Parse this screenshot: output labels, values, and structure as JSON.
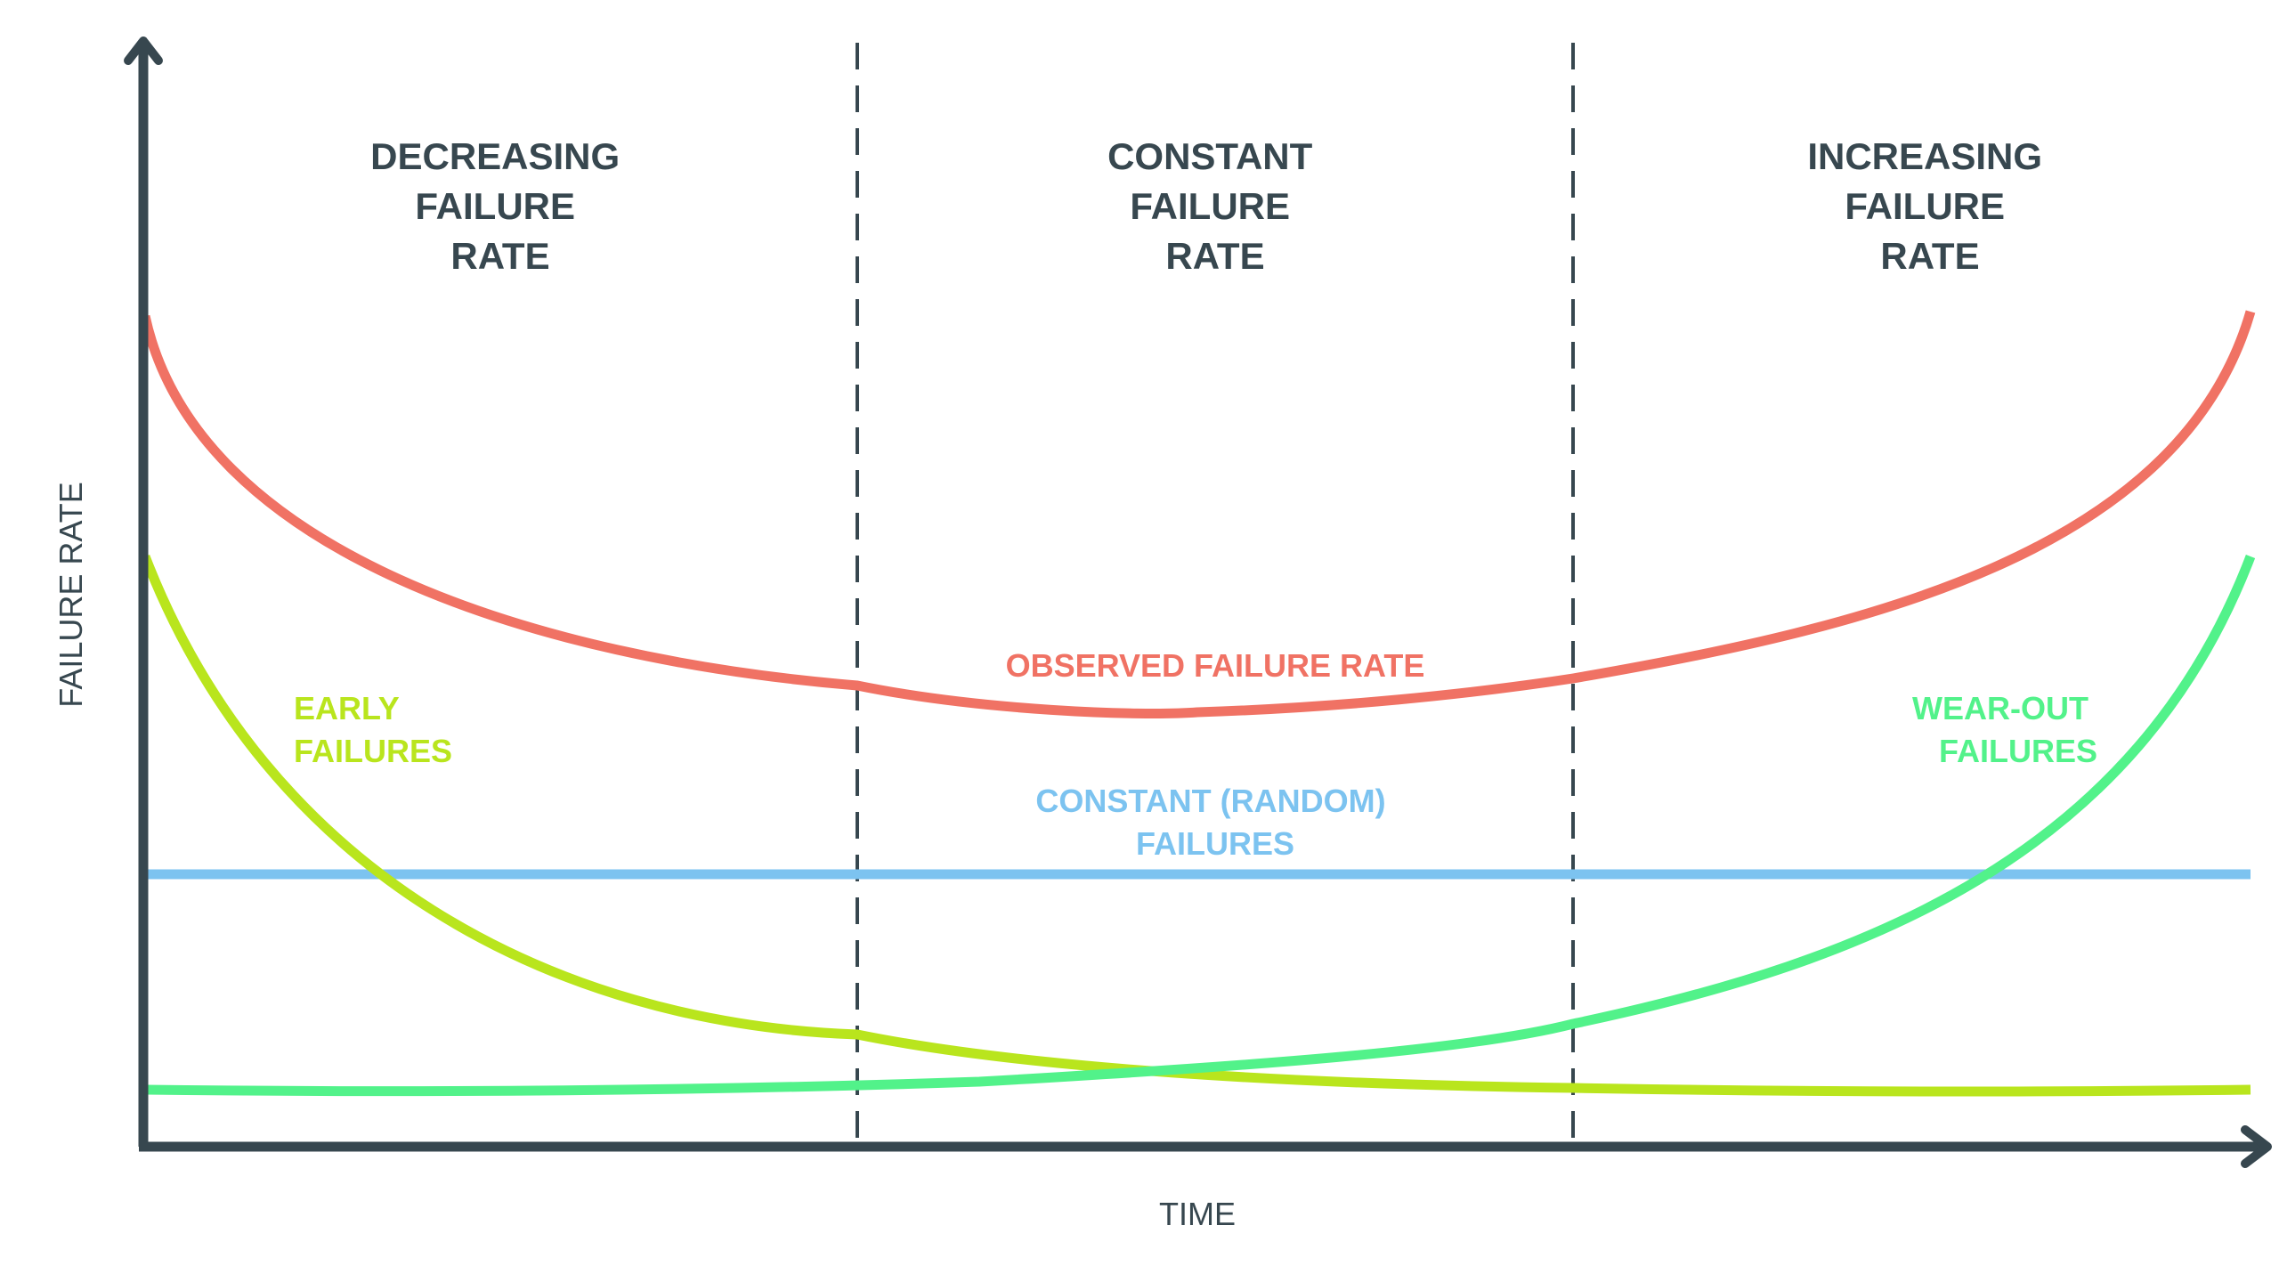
{
  "diagram": {
    "phases": [
      {
        "lines": [
          "DECREASING",
          "FAILURE",
          "RATE"
        ]
      },
      {
        "lines": [
          "CONSTANT",
          "FAILURE",
          "RATE"
        ]
      },
      {
        "lines": [
          "INCREASING",
          "FAILURE",
          "RATE"
        ]
      }
    ],
    "axes": {
      "x_label": "TIME",
      "y_label": "FAILURE RATE"
    },
    "curves": {
      "observed": {
        "label_lines": [
          "OBSERVED FAILURE RATE"
        ],
        "color": "#f07264"
      },
      "early": {
        "label_lines": [
          "EARLY",
          "FAILURES"
        ],
        "color": "#b9e51d"
      },
      "random": {
        "label_lines": [
          "CONSTANT (RANDOM)",
          "FAILURES"
        ],
        "color": "#7cc3f0"
      },
      "wearout": {
        "label_lines": [
          "WEAR-OUT",
          "FAILURES"
        ],
        "color": "#52f28a"
      }
    },
    "colors": {
      "axis": "#37474f",
      "divider": "#37474f",
      "text": "#37474f"
    }
  }
}
